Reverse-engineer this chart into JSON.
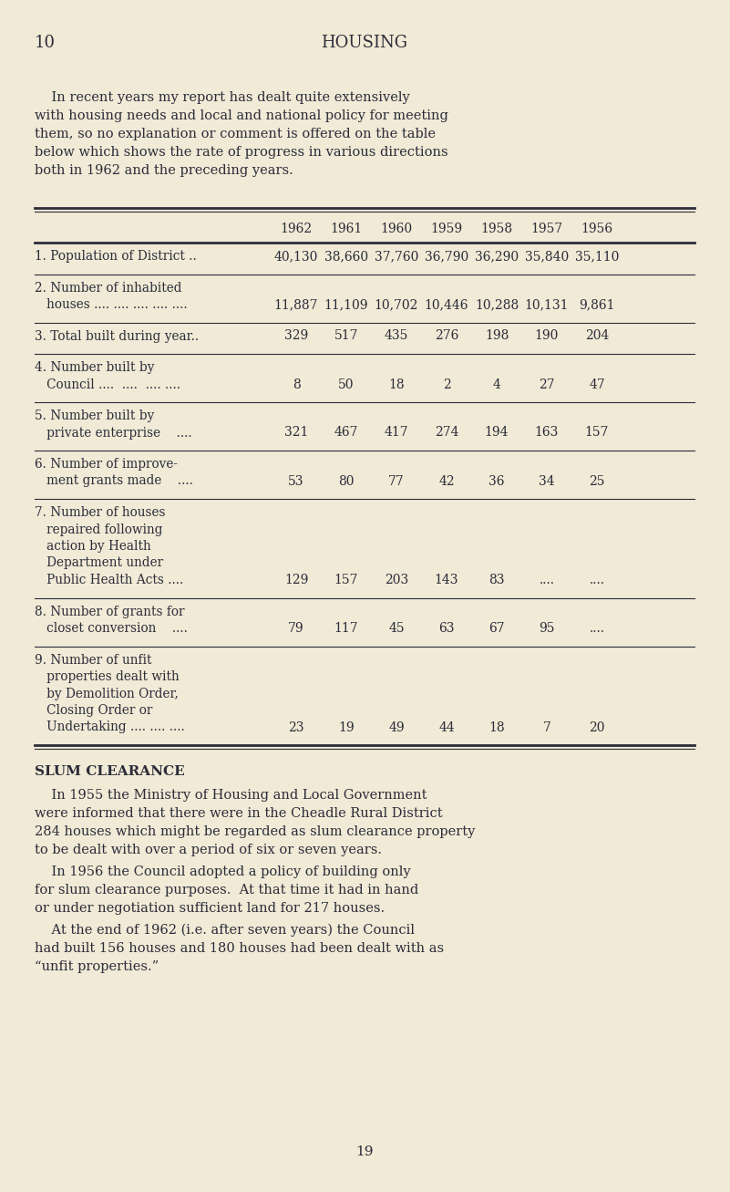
{
  "bg_color": "#f0ead6",
  "text_color": "#2c2c3a",
  "page_number": "10",
  "title": "HOUSING",
  "years": [
    "1962",
    "1961",
    "1960",
    "1959",
    "1958",
    "1957",
    "1956"
  ],
  "rows": [
    {
      "label_lines": [
        "1. Population of District .."
      ],
      "values": [
        "40,130",
        "38,660",
        "37,760",
        "36,790",
        "36,290",
        "35,840",
        "35,110"
      ],
      "nlines": 1
    },
    {
      "label_lines": [
        "2. Number of inhabited",
        "   houses .... .... .... .... ...."
      ],
      "values": [
        "11,887",
        "11,109",
        "10,702",
        "10,446",
        "10,288",
        "10,131",
        "9,861"
      ],
      "nlines": 2
    },
    {
      "label_lines": [
        "3. Total built during year.."
      ],
      "values": [
        "329",
        "517",
        "435",
        "276",
        "198",
        "190",
        "204"
      ],
      "nlines": 1
    },
    {
      "label_lines": [
        "4. Number built by",
        "   Council ....  ....  .... ...."
      ],
      "values": [
        "8",
        "50",
        "18",
        "2",
        "4",
        "27",
        "47"
      ],
      "nlines": 2
    },
    {
      "label_lines": [
        "5. Number built by",
        "   private enterprise    ...."
      ],
      "values": [
        "321",
        "467",
        "417",
        "274",
        "194",
        "163",
        "157"
      ],
      "nlines": 2
    },
    {
      "label_lines": [
        "6. Number of improve-",
        "   ment grants made    ...."
      ],
      "values": [
        "53",
        "80",
        "77",
        "42",
        "36",
        "34",
        "25"
      ],
      "nlines": 2
    },
    {
      "label_lines": [
        "7. Number of houses",
        "   repaired following",
        "   action by Health",
        "   Department under",
        "   Public Health Acts ...."
      ],
      "values": [
        "129",
        "157",
        "203",
        "143",
        "83",
        "....",
        "...."
      ],
      "nlines": 5
    },
    {
      "label_lines": [
        "8. Number of grants for",
        "   closet conversion    ...."
      ],
      "values": [
        "79",
        "117",
        "45",
        "63",
        "67",
        "95",
        "...."
      ],
      "nlines": 2
    },
    {
      "label_lines": [
        "9. Number of unfit",
        "   properties dealt with",
        "   by Demolition Order,",
        "   Closing Order or",
        "   Undertaking .... .... ...."
      ],
      "values": [
        "23",
        "19",
        "49",
        "44",
        "18",
        "7",
        "20"
      ],
      "nlines": 5
    }
  ],
  "slum_heading": "SLUM CLEARANCE",
  "slum_para1_lines": [
    "    In 1955 the Ministry of Housing and Local Government",
    "were informed that there were in the Cheadle Rural District",
    "284 houses which might be regarded as slum clearance property",
    "to be dealt with over a period of six or seven years."
  ],
  "slum_para2_lines": [
    "    In 1956 the Council adopted a policy of building only",
    "for slum clearance purposes.  At that time it had in hand",
    "or under negotiation sufficient land for 217 houses."
  ],
  "slum_para3_lines": [
    "    At the end of 1962 (i.e. after seven years) the Council",
    "had built 156 houses and 180 houses had been dealt with as",
    "“unfit properties.”"
  ],
  "footer_page": "19",
  "intro_lines": [
    "    In recent years my report has dealt quite extensively",
    "with housing needs and local and national policy for meeting",
    "them, so no explanation or comment is offered on the table",
    "below which shows the rate of progress in various directions",
    "both in 1962 and the preceding years."
  ]
}
